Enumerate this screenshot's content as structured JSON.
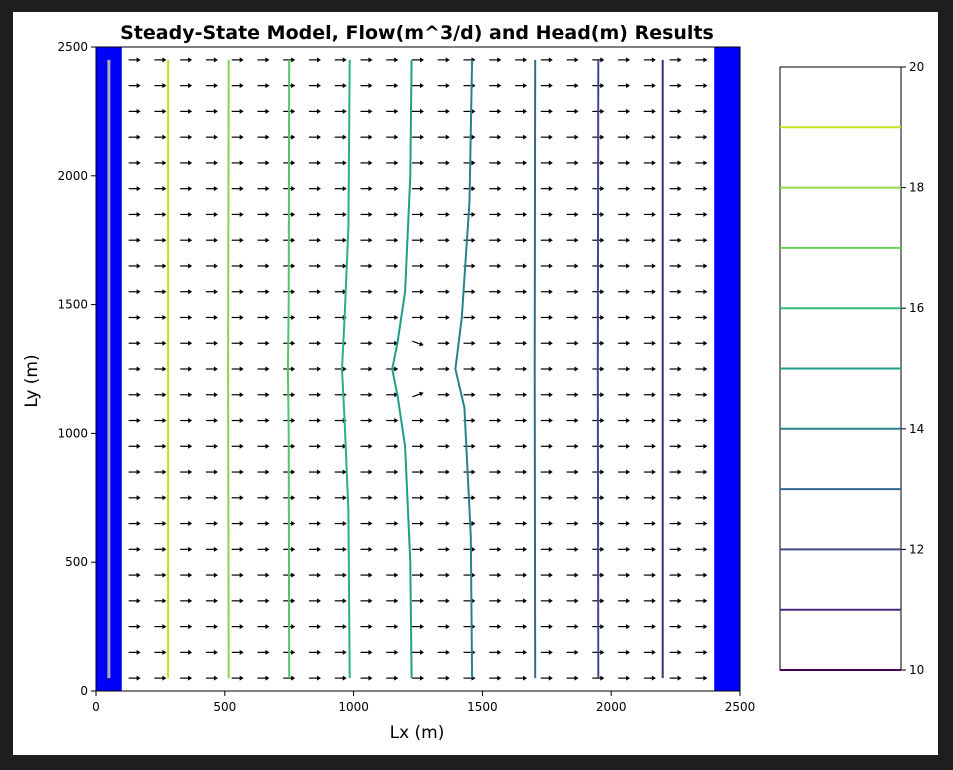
{
  "chart_data": {
    "type": "contour",
    "title": "Steady-State Model, Flow(m^3/d) and Head(m) Results",
    "xlabel": "Lx (m)",
    "ylabel": "Ly (m)",
    "xlim": [
      0,
      2500
    ],
    "ylim": [
      0,
      2500
    ],
    "xticks": [
      0,
      500,
      1000,
      1500,
      2000,
      2500
    ],
    "yticks": [
      0,
      500,
      1000,
      1500,
      2000,
      2500
    ],
    "boundary_cells": [
      {
        "side": "left",
        "x_range": [
          0,
          100
        ],
        "color": "#0000ff"
      },
      {
        "side": "right",
        "x_range": [
          2400,
          2500
        ],
        "color": "#0000ff"
      }
    ],
    "well_line": {
      "x": 50,
      "y_range": [
        50,
        2450
      ],
      "color": "#b0b0b0"
    },
    "flow_vectors": {
      "x_start": 150,
      "x_step": 100,
      "x_end": 2350,
      "y_start": 50,
      "y_step": 100,
      "y_end": 2450,
      "direction": "+x",
      "disturbance_center": [
        1250,
        1250
      ]
    },
    "contours": [
      {
        "level": 19,
        "color": "#c8e020",
        "points": [
          [
            280,
            50
          ],
          [
            280,
            1250
          ],
          [
            280,
            2450
          ]
        ]
      },
      {
        "level": 18,
        "color": "#86d549",
        "points": [
          [
            515,
            50
          ],
          [
            513,
            1250
          ],
          [
            515,
            2450
          ]
        ]
      },
      {
        "level": 17,
        "color": "#52c569",
        "points": [
          [
            750,
            50
          ],
          [
            748,
            1000
          ],
          [
            745,
            1250
          ],
          [
            748,
            1500
          ],
          [
            750,
            2450
          ]
        ]
      },
      {
        "level": 16,
        "color": "#2ab07f",
        "points": [
          [
            985,
            50
          ],
          [
            980,
            700
          ],
          [
            965,
            1050
          ],
          [
            955,
            1250
          ],
          [
            965,
            1450
          ],
          [
            980,
            1800
          ],
          [
            985,
            2450
          ]
        ]
      },
      {
        "level": 15,
        "color": "#1f9e89",
        "points": [
          [
            1225,
            50
          ],
          [
            1220,
            500
          ],
          [
            1200,
            950
          ],
          [
            1170,
            1150
          ],
          [
            1150,
            1250
          ],
          [
            1170,
            1350
          ],
          [
            1200,
            1550
          ],
          [
            1220,
            2000
          ],
          [
            1225,
            2450
          ]
        ]
      },
      {
        "level": 14,
        "color": "#26828e",
        "points": [
          [
            1460,
            50
          ],
          [
            1455,
            600
          ],
          [
            1430,
            1100
          ],
          [
            1395,
            1250
          ],
          [
            1420,
            1450
          ],
          [
            1450,
            1900
          ],
          [
            1460,
            2450
          ]
        ]
      },
      {
        "level": 13,
        "color": "#31688e",
        "points": [
          [
            1705,
            50
          ],
          [
            1703,
            1250
          ],
          [
            1705,
            2450
          ]
        ]
      },
      {
        "level": 12,
        "color": "#3e4a89",
        "points": [
          [
            1950,
            50
          ],
          [
            1948,
            1250
          ],
          [
            1950,
            2450
          ]
        ]
      },
      {
        "level": 11,
        "color": "#482878",
        "points": [
          [
            2200,
            50
          ],
          [
            2200,
            1250
          ],
          [
            2200,
            2450
          ]
        ]
      }
    ],
    "colorbar": {
      "min": 10,
      "max": 20,
      "ticks": [
        10,
        12,
        14,
        16,
        18,
        20
      ],
      "levels": [
        {
          "value": 10,
          "color": "#440154"
        },
        {
          "value": 11,
          "color": "#482878"
        },
        {
          "value": 12,
          "color": "#3e4a89"
        },
        {
          "value": 13,
          "color": "#31688e"
        },
        {
          "value": 14,
          "color": "#26828e"
        },
        {
          "value": 15,
          "color": "#1f9e89"
        },
        {
          "value": 16,
          "color": "#35b779"
        },
        {
          "value": 17,
          "color": "#6ece58"
        },
        {
          "value": 18,
          "color": "#8fd744"
        },
        {
          "value": 19,
          "color": "#c8e020"
        }
      ]
    }
  }
}
